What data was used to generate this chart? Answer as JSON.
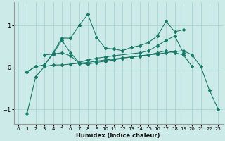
{
  "xlabel": "Humidex (Indice chaleur)",
  "bg_color": "#cceae8",
  "line_color": "#1a7a6a",
  "grid_color": "#aad4d0",
  "xlim": [
    -0.5,
    23.5
  ],
  "ylim": [
    -1.35,
    1.55
  ],
  "yticks": [
    -1,
    0,
    1
  ],
  "xticks": [
    0,
    1,
    2,
    3,
    4,
    5,
    6,
    7,
    8,
    9,
    10,
    11,
    12,
    13,
    14,
    15,
    16,
    17,
    18,
    19,
    20,
    21,
    22,
    23
  ],
  "lines": [
    {
      "x": [
        1,
        2,
        3,
        4,
        5,
        6,
        7,
        8,
        9,
        10,
        11,
        12,
        13,
        14,
        15,
        16,
        17,
        18,
        19
      ],
      "y": [
        -0.1,
        0.02,
        0.06,
        0.35,
        0.7,
        0.7,
        1.0,
        1.27,
        0.72,
        0.46,
        0.44,
        0.4,
        0.48,
        0.52,
        0.6,
        0.75,
        1.1,
        0.85,
        0.9
      ]
    },
    {
      "x": [
        1,
        2,
        3,
        4,
        5,
        6,
        7,
        8,
        9,
        10,
        11,
        12,
        13,
        14,
        15,
        16,
        17,
        18,
        19,
        20,
        21,
        22,
        23
      ],
      "y": [
        -1.1,
        -0.22,
        0.02,
        0.06,
        0.06,
        0.08,
        0.1,
        0.12,
        0.15,
        0.18,
        0.2,
        0.23,
        0.25,
        0.27,
        0.3,
        0.32,
        0.35,
        0.38,
        0.4,
        0.3,
        0.02,
        -0.55,
        -1.0
      ]
    },
    {
      "x": [
        1,
        2,
        3,
        4,
        5,
        6,
        7,
        8,
        9,
        10,
        11,
        14,
        15,
        16,
        17,
        18,
        19
      ],
      "y": [
        -0.1,
        0.02,
        0.06,
        0.32,
        0.65,
        0.35,
        0.12,
        0.18,
        0.22,
        0.25,
        0.28,
        0.35,
        0.4,
        0.52,
        0.65,
        0.75,
        0.35
      ]
    },
    {
      "x": [
        3,
        4,
        5,
        6,
        7,
        8,
        9,
        10,
        11,
        12,
        13,
        14,
        15,
        16,
        17,
        18,
        19,
        20
      ],
      "y": [
        0.3,
        0.32,
        0.35,
        0.28,
        0.1,
        0.08,
        0.12,
        0.15,
        0.18,
        0.22,
        0.25,
        0.28,
        0.3,
        0.35,
        0.4,
        0.35,
        0.3,
        0.02
      ]
    }
  ]
}
